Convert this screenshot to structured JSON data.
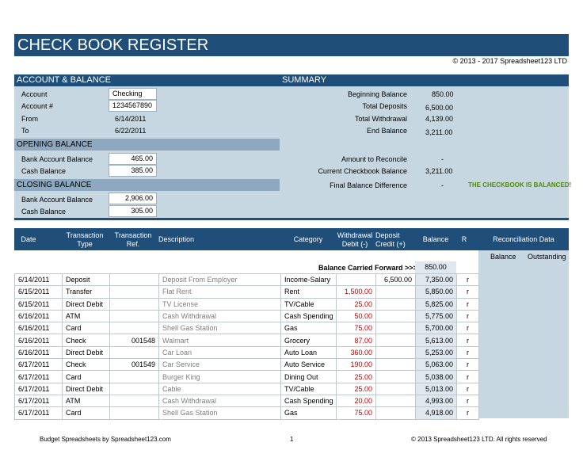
{
  "title": "CHECK BOOK REGISTER",
  "copyright": "© 2013 - 2017 Spreadsheet123 LTD",
  "account_balance": {
    "header": "ACCOUNT & BALANCE",
    "account_label": "Account",
    "account_value": "Checking",
    "account_no_label": "Account #",
    "account_no_value": "1234567890",
    "from_label": "From",
    "from_value": "6/14/2011",
    "to_label": "To",
    "to_value": "6/22/2011"
  },
  "opening_balance": {
    "header": "OPENING BALANCE",
    "bank_label": "Bank Account Balance",
    "bank_value": "465.00",
    "cash_label": "Cash Balance",
    "cash_value": "385.00"
  },
  "closing_balance": {
    "header": "CLOSING BALANCE",
    "bank_label": "Bank Account Balance",
    "bank_value": "2,906.00",
    "cash_label": "Cash Balance",
    "cash_value": "305.00"
  },
  "summary": {
    "header": "SUMMARY",
    "beginning_label": "Beginning Balance",
    "beginning_value": "850.00",
    "deposits_label": "Total Deposits",
    "deposits_value": "6,500.00",
    "withdrawal_label": "Total Withdrawal",
    "withdrawal_value": "4,139.00",
    "end_label": "End Balance",
    "end_value": "3,211.00",
    "reconcile_label": "Amount to Reconcile",
    "reconcile_value": "-",
    "checkbook_label": "Current Checkbook Balance",
    "checkbook_value": "3,211.00",
    "difference_label": "Final Balance Difference",
    "difference_value": "-",
    "status": "THE CHECKBOOK IS BALANCED!"
  },
  "register": {
    "columns": {
      "date": "Date",
      "type_1": "Transaction",
      "type_2": "Type",
      "ref_1": "Transaction",
      "ref_2": "Ref.",
      "description": "Description",
      "category": "Category",
      "withdrawal_1": "Withdrawal",
      "withdrawal_2": "Debit (-)",
      "deposit_1": "Deposit",
      "deposit_2": "Credit (+)",
      "balance": "Balance",
      "r": "R"
    },
    "carried_forward_label": "Balance Carried Forward >>>",
    "carried_forward_value": "850.00",
    "rows": [
      {
        "date": "6/14/2011",
        "type": "Deposit",
        "ref": "",
        "desc": "Deposit From Employer",
        "cat": "Income-Salary",
        "wd": "",
        "dep": "6,500.00",
        "bal": "7,350.00",
        "r": "r"
      },
      {
        "date": "6/15/2011",
        "type": "Transfer",
        "ref": "",
        "desc": "Flat Rent",
        "cat": "Rent",
        "wd": "1,500.00",
        "dep": "",
        "bal": "5,850.00",
        "r": "r"
      },
      {
        "date": "6/15/2011",
        "type": "Direct Debit",
        "ref": "",
        "desc": "TV License",
        "cat": "TV/Cable",
        "wd": "25.00",
        "dep": "",
        "bal": "5,825.00",
        "r": "r"
      },
      {
        "date": "6/16/2011",
        "type": "ATM",
        "ref": "",
        "desc": "Cash Withdrawal",
        "cat": "Cash Spending",
        "wd": "50.00",
        "dep": "",
        "bal": "5,775.00",
        "r": "r"
      },
      {
        "date": "6/16/2011",
        "type": "Card",
        "ref": "",
        "desc": "Shell Gas Station",
        "cat": "Gas",
        "wd": "75.00",
        "dep": "",
        "bal": "5,700.00",
        "r": "r"
      },
      {
        "date": "6/16/2011",
        "type": "Check",
        "ref": "001548",
        "desc": "Walmart",
        "cat": "Grocery",
        "wd": "87.00",
        "dep": "",
        "bal": "5,613.00",
        "r": "r"
      },
      {
        "date": "6/16/2011",
        "type": "Direct Debit",
        "ref": "",
        "desc": "Car Loan",
        "cat": "Auto Loan",
        "wd": "360.00",
        "dep": "",
        "bal": "5,253.00",
        "r": "r"
      },
      {
        "date": "6/17/2011",
        "type": "Check",
        "ref": "001549",
        "desc": "Car Service",
        "cat": "Auto Service",
        "wd": "190.00",
        "dep": "",
        "bal": "5,063.00",
        "r": "r"
      },
      {
        "date": "6/17/2011",
        "type": "Card",
        "ref": "",
        "desc": "Burger King",
        "cat": "Dining Out",
        "wd": "25.00",
        "dep": "",
        "bal": "5,038.00",
        "r": "r"
      },
      {
        "date": "6/17/2011",
        "type": "Direct Debit",
        "ref": "",
        "desc": "Cable",
        "cat": "TV/Cable",
        "wd": "25.00",
        "dep": "",
        "bal": "5,013.00",
        "r": "r"
      },
      {
        "date": "6/17/2011",
        "type": "ATM",
        "ref": "",
        "desc": "Cash Withdrawal",
        "cat": "Cash Spending",
        "wd": "20.00",
        "dep": "",
        "bal": "4,993.00",
        "r": "r"
      },
      {
        "date": "6/17/2011",
        "type": "Card",
        "ref": "",
        "desc": "Shell Gas Station",
        "cat": "Gas",
        "wd": "75.00",
        "dep": "",
        "bal": "4,918.00",
        "r": "r"
      }
    ]
  },
  "reconciliation": {
    "header": "Reconciliation Data",
    "balance_label": "Balance",
    "outstanding_label": "Outstanding"
  },
  "footer": {
    "left": "Budget Spreadsheets by Spreadsheet123.com",
    "page": "1",
    "right": "© 2013 Spreadsheet123 LTD. All rights reserved"
  },
  "colors": {
    "header": "#1f4e79",
    "panel": "#c7d7e2",
    "status": "#4f8a10",
    "withdrawal": "#c00000"
  }
}
